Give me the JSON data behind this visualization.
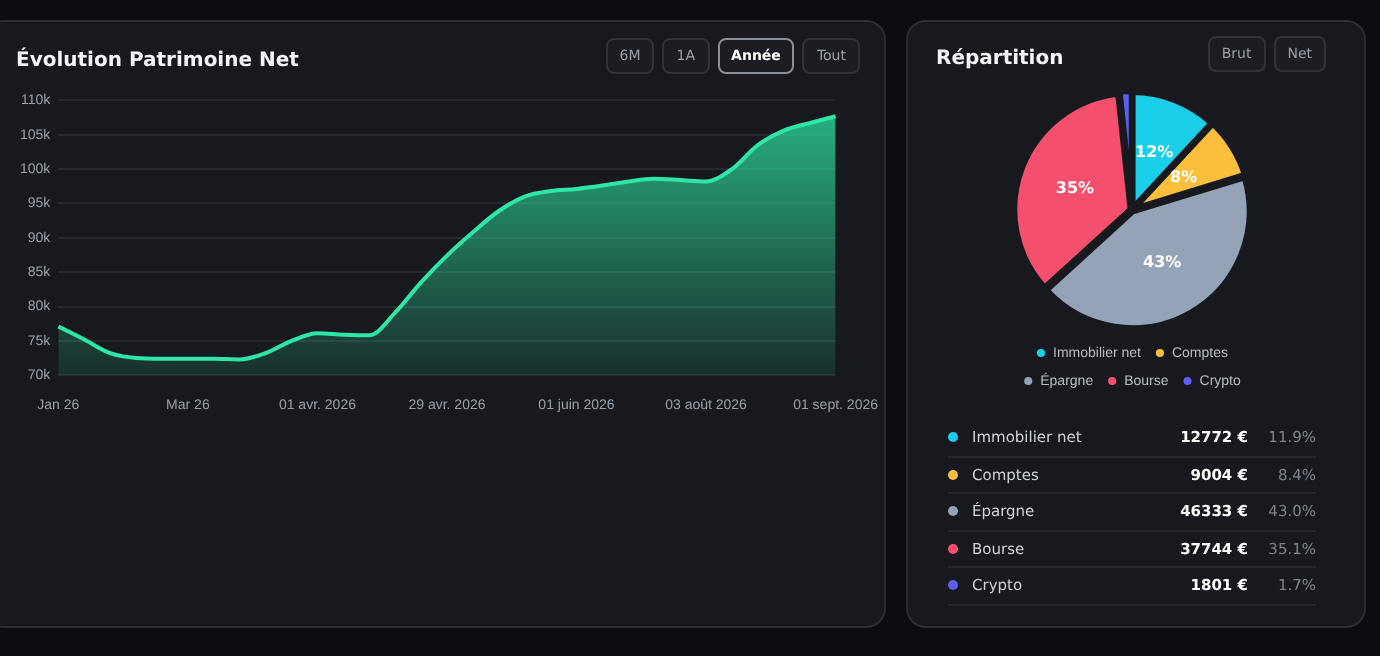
{
  "chart_data": [
    {
      "type": "area",
      "title": "Évolution Patrimoine Net",
      "annotations": [
        "6M",
        "1A",
        "Année",
        "Tout"
      ],
      "categories": [
        "Jan 26",
        null,
        null,
        null,
        null,
        "Mar 26",
        null,
        null,
        null,
        null,
        "01 avr. 2026",
        null,
        null,
        null,
        null,
        "29 avr. 2026",
        null,
        null,
        null,
        null,
        "01 juin 2026",
        null,
        null,
        null,
        null,
        "03 août 2026",
        null,
        null,
        null,
        null,
        "01 sept. 2026"
      ],
      "series": [
        {
          "color": "#2ee6a6",
          "values": [
            77.1,
            75.2,
            73.2,
            72.5,
            72.4,
            72.4,
            72.4,
            72.3,
            73.2,
            75.0,
            76.1,
            75.9,
            75.8,
            79.1,
            83.5,
            87.4,
            90.8,
            93.9,
            96.0,
            96.8,
            97.1,
            97.6,
            98.2,
            98.6,
            98.4,
            98.2,
            100.0,
            103.5,
            105.6,
            106.7,
            107.7
          ]
        }
      ],
      "ylim": [
        70,
        110
      ],
      "yticks": [
        {
          "value": 70,
          "label": "70k"
        },
        {
          "value": 75,
          "label": "75k"
        },
        {
          "value": 80,
          "label": "80k"
        },
        {
          "value": 85,
          "label": "85k"
        },
        {
          "value": 90,
          "label": "90k"
        },
        {
          "value": 95,
          "label": "95k"
        },
        {
          "value": 100,
          "label": "100k"
        },
        {
          "value": 105,
          "label": "105k"
        },
        {
          "value": 110,
          "label": "110k"
        }
      ],
      "grid": "y",
      "legend": false,
      "marker": "none"
    },
    {
      "type": "pie",
      "title": "Répartition",
      "annotations": [
        "Brut",
        "Net"
      ],
      "categories": [
        "Immobilier net",
        "Comptes",
        "Épargne",
        "Bourse",
        "Crypto"
      ],
      "values": [
        11.9,
        8.4,
        43.0,
        35.1,
        1.7
      ],
      "colors": [
        "#1ccfe8",
        "#fbbf3c",
        "#94a3b8",
        "#f4506e",
        "#5b5ff0"
      ],
      "value_labels": [
        "12%",
        "8%",
        "43%",
        "35%",
        null
      ],
      "legend": "bottom"
    },
    {
      "type": "other",
      "categories": [
        "Immobilier net",
        "Comptes",
        "Épargne",
        "Bourse",
        "Crypto"
      ],
      "colors": [
        "#1ccfe8",
        "#fbbf3c",
        "#94a3b8",
        "#f4506e",
        "#5b5ff0"
      ],
      "series": [
        {
          "values": [
            12772,
            9004,
            46333,
            37744,
            1801
          ],
          "value_labels": [
            "12772 €",
            "9004 €",
            "46333 €",
            "37744 €",
            "1801 €"
          ]
        },
        {
          "values": [
            11.9,
            8.4,
            43.0,
            35.1,
            1.7
          ],
          "value_labels": [
            "11.9%",
            "8.4%",
            "43.0%",
            "35.1%",
            "1.7%"
          ]
        }
      ]
    }
  ]
}
